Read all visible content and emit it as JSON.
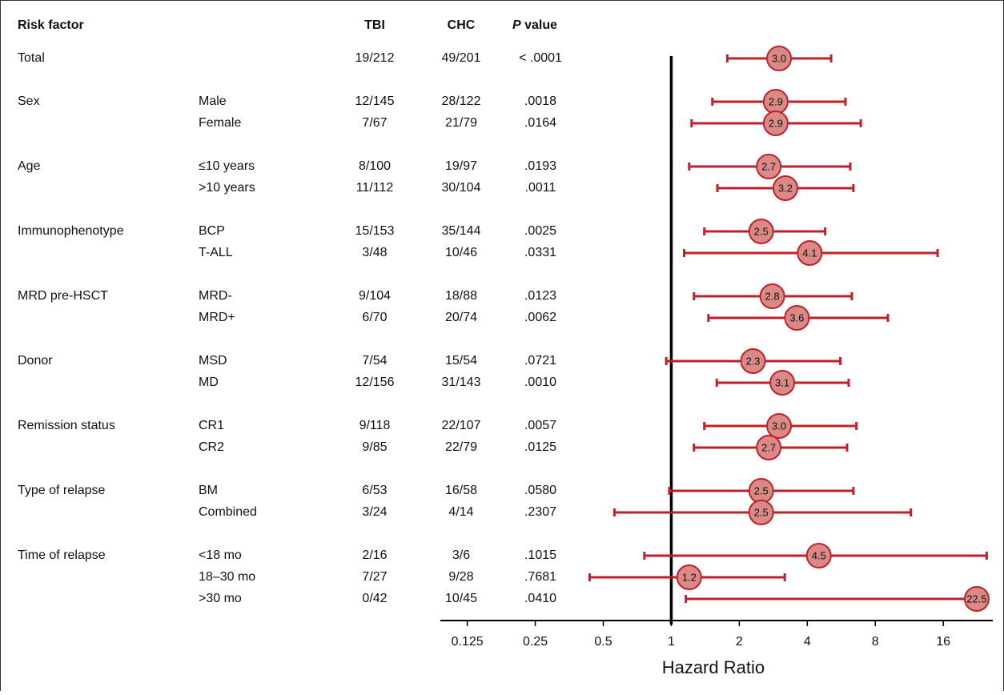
{
  "chart_data": {
    "type": "forest",
    "header": {
      "factor": "Risk factor",
      "tbi": "TBI",
      "chc": "CHC",
      "p_symbol": "P",
      "p_label": "value"
    },
    "groups": [
      {
        "factor": "Total",
        "rows": [
          {
            "tbi": "19/212",
            "chc": "49/201",
            "p": "< .0001",
            "value": 3.0,
            "value_label": "3.0",
            "ci": [
              1.77,
              5.1
            ]
          }
        ]
      },
      {
        "factor": "Sex",
        "rows": [
          {
            "subgroup": "Male",
            "tbi": "12/145",
            "chc": "28/122",
            "p": ".0018",
            "value": 2.9,
            "value_label": "2.9",
            "ci": [
              1.52,
              5.9
            ]
          },
          {
            "subgroup": "Female",
            "tbi": "7/67",
            "chc": "21/79",
            "p": ".0164",
            "value": 2.9,
            "value_label": "2.9",
            "ci": [
              1.23,
              6.9
            ]
          }
        ]
      },
      {
        "factor": "Age",
        "rows": [
          {
            "subgroup": "≤10 years",
            "tbi": "8/100",
            "chc": "19/97",
            "p": ".0193",
            "value": 2.7,
            "value_label": "2.7",
            "ci": [
              1.2,
              6.2
            ]
          },
          {
            "subgroup": ">10 years",
            "tbi": "11/112",
            "chc": "30/104",
            "p": ".0011",
            "value": 3.2,
            "value_label": "3.2",
            "ci": [
              1.6,
              6.4
            ]
          }
        ]
      },
      {
        "factor": "Immunophenotype",
        "rows": [
          {
            "subgroup": "BCP",
            "tbi": "15/153",
            "chc": "35/144",
            "p": ".0025",
            "value": 2.5,
            "value_label": "2.5",
            "ci": [
              1.4,
              4.8
            ]
          },
          {
            "subgroup": "T-ALL",
            "tbi": "3/48",
            "chc": "10/46",
            "p": ".0331",
            "value": 4.1,
            "value_label": "4.1",
            "ci": [
              1.14,
              15.1
            ]
          }
        ]
      },
      {
        "factor": "MRD pre-HSCT",
        "rows": [
          {
            "subgroup": "MRD-",
            "tbi": "9/104",
            "chc": "18/88",
            "p": ".0123",
            "value": 2.8,
            "value_label": "2.8",
            "ci": [
              1.26,
              6.3
            ]
          },
          {
            "subgroup": "MRD+",
            "tbi": "6/70",
            "chc": "20/74",
            "p": ".0062",
            "value": 3.6,
            "value_label": "3.6",
            "ci": [
              1.46,
              9.1
            ]
          }
        ]
      },
      {
        "factor": "Donor",
        "rows": [
          {
            "subgroup": "MSD",
            "tbi": "7/54",
            "chc": "15/54",
            "p": ".0721",
            "value": 2.3,
            "value_label": "2.3",
            "ci": [
              0.95,
              5.6
            ]
          },
          {
            "subgroup": "MD",
            "tbi": "12/156",
            "chc": "31/143",
            "p": ".0010",
            "value": 3.1,
            "value_label": "3.1",
            "ci": [
              1.59,
              6.1
            ]
          }
        ]
      },
      {
        "factor": "Remission status",
        "rows": [
          {
            "subgroup": "CR1",
            "tbi": "9/118",
            "chc": "22/107",
            "p": ".0057",
            "value": 3.0,
            "value_label": "3.0",
            "ci": [
              1.4,
              6.6
            ]
          },
          {
            "subgroup": "CR2",
            "tbi": "9/85",
            "chc": "22/79",
            "p": ".0125",
            "value": 2.7,
            "value_label": "2.7",
            "ci": [
              1.26,
              6.0
            ]
          }
        ]
      },
      {
        "factor": "Type of relapse",
        "rows": [
          {
            "subgroup": "BM",
            "tbi": "6/53",
            "chc": "16/58",
            "p": ".0580",
            "value": 2.5,
            "value_label": "2.5",
            "ci": [
              0.98,
              6.4
            ]
          },
          {
            "subgroup": "Combined",
            "tbi": "3/24",
            "chc": "4/14",
            "p": ".2307",
            "value": 2.5,
            "value_label": "2.5",
            "ci": [
              0.56,
              11.5
            ]
          }
        ]
      },
      {
        "factor": "Time of relapse",
        "rows": [
          {
            "subgroup": "<18 mo",
            "tbi": "2/16",
            "chc": "3/6",
            "p": ".1015",
            "value": 4.5,
            "value_label": "4.5",
            "ci": [
              0.76,
              24.9
            ]
          },
          {
            "subgroup": "18–30 mo",
            "tbi": "7/27",
            "chc": "9/28",
            "p": ".7681",
            "value": 1.2,
            "value_label": "1.2",
            "ci": [
              0.435,
              3.18
            ]
          },
          {
            "subgroup": ">30 mo",
            "tbi": "0/42",
            "chc": "10/45",
            "p": ".0410",
            "value": 22.5,
            "value_label": "22.5",
            "ci": [
              1.16,
              25
            ]
          }
        ]
      }
    ],
    "xlabel": "Hazard Ratio",
    "xscale": "log2",
    "xlim": [
      0.095,
      26.5
    ],
    "xticks": [
      0.125,
      0.25,
      0.5,
      1,
      2,
      4,
      8,
      16
    ],
    "reference_line": 1,
    "line_color": "#c0202a",
    "marker_color": "#d98a86"
  }
}
